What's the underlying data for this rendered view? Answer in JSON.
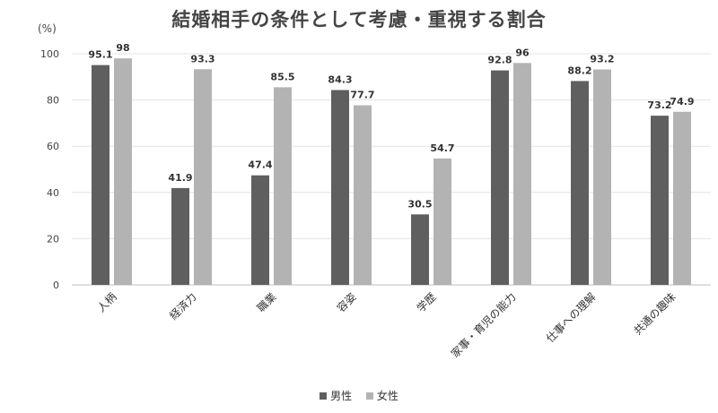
{
  "chart_data": {
    "type": "bar",
    "title": "結婚相手の条件として考慮・重視する割合",
    "unit_label": "(%)",
    "categories": [
      "人柄",
      "経済力",
      "職業",
      "容姿",
      "学歴",
      "家事・育児の能力",
      "仕事への理解",
      "共通の趣味"
    ],
    "series": [
      {
        "name": "男性",
        "color": "#5f5f5f",
        "values": [
          95.1,
          41.9,
          47.4,
          84.3,
          30.5,
          92.8,
          88.2,
          73.2
        ]
      },
      {
        "name": "女性",
        "color": "#b3b3b3",
        "values": [
          98,
          93.3,
          85.5,
          77.7,
          54.7,
          96,
          93.2,
          74.9
        ]
      }
    ],
    "ylim": [
      0,
      100
    ],
    "yticks": [
      0,
      20,
      40,
      60,
      80,
      100
    ],
    "grid": true,
    "legend_position": "bottom"
  }
}
